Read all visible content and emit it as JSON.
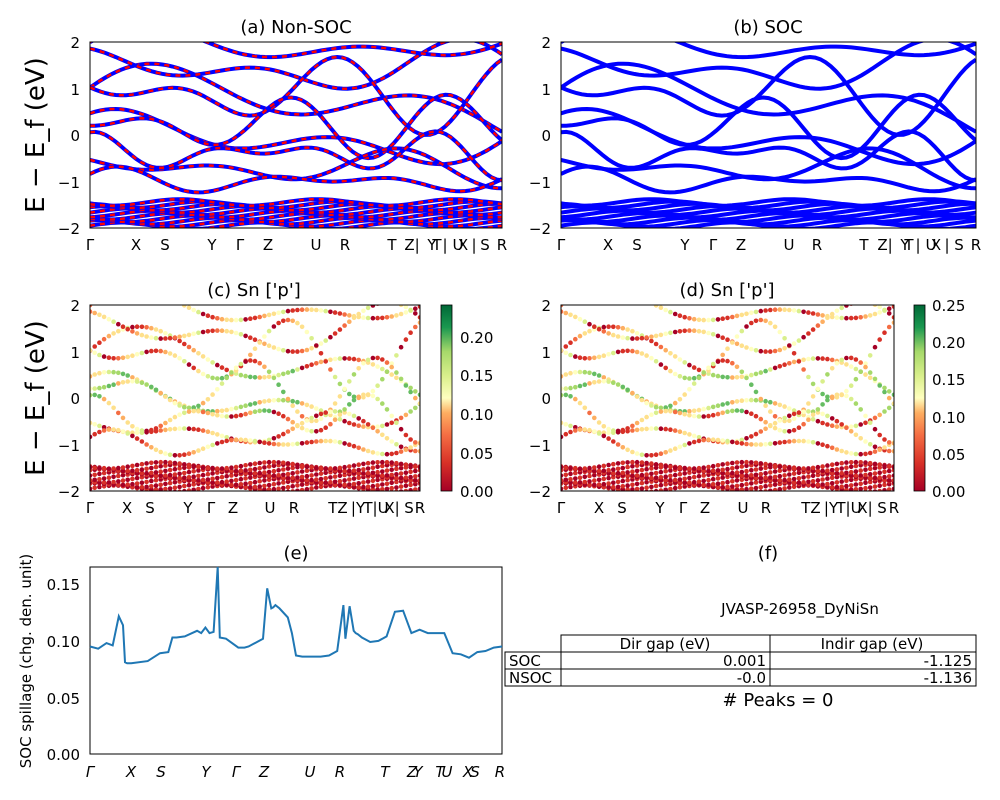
{
  "kpath_labels": [
    "Γ",
    "X",
    "S",
    "Y",
    "Γ",
    "Z",
    "U",
    "R",
    "T",
    "Z|Y",
    "T|U",
    "X|S",
    "R"
  ],
  "kpath_labels_ab": [
    "Γ",
    "X",
    "S",
    "Y",
    "Γ",
    "Z",
    "U",
    "R",
    "T",
    "Z|",
    "Y",
    "T",
    "|",
    "U",
    "X",
    "|",
    "S",
    "R"
  ],
  "kpath_labels_cd": [
    "Γ",
    "X",
    "S",
    "Y",
    "Γ",
    "Z",
    "U",
    "R",
    "TZ",
    "|Y",
    "T|U",
    "X|",
    "S",
    "R"
  ],
  "kpath_labels_e": [
    "Γ",
    "X",
    "S",
    "Y",
    "Γ",
    "Z",
    "U",
    "R",
    "T",
    "Z",
    "Y",
    "T",
    "U",
    "X",
    "S",
    "R"
  ],
  "energy_ticks": [
    "2",
    "1",
    "0",
    "−1",
    "−2"
  ],
  "colorbar_c_ticks": [
    "0.20",
    "0.15",
    "0.10",
    "0.05",
    "0.00"
  ],
  "colorbar_d_ticks": [
    "0.25",
    "0.20",
    "0.15",
    "0.10",
    "0.05",
    "0.00"
  ],
  "spillage_ticks": [
    "0.15",
    "0.10",
    "0.05",
    "0.00"
  ],
  "colors": {
    "non_soc_red": "#ff0000",
    "non_soc_blue": "#0000ff",
    "soc_blue": "#0000ff",
    "spillage_line": "#1f77b4",
    "colormap": "RdYlGn"
  },
  "panel_a": {
    "title": "(a) Non-SOC",
    "ylabel": "E − E_f (eV)"
  },
  "panel_b": {
    "title": "(b) SOC"
  },
  "panel_c": {
    "title": "(c)  Sn ['p']",
    "ylabel": "E − E_f (eV)"
  },
  "panel_d": {
    "title": "(d) Sn ['p']"
  },
  "panel_e": {
    "title": "(e)",
    "ylabel": "SOC spillage (chg. den. unit)"
  },
  "panel_f": {
    "title": "(f)",
    "material": "JVASP-26958_DyNiSn",
    "col_headers": [
      "Dir gap (eV)",
      "Indir gap (eV)"
    ],
    "rows": [
      {
        "label": "SOC",
        "dir": "0.001",
        "indir": "-1.125"
      },
      {
        "label": "NSOC",
        "dir": "-0.0",
        "indir": "-1.136"
      }
    ],
    "peaks": "# Peaks = 0"
  },
  "chart_data": [
    {
      "type": "line",
      "title": "(a) Non-SOC",
      "ylabel": "E − E_f (eV)",
      "ylim": [
        -2,
        2
      ],
      "series": [
        {
          "name": "",
          "values": []
        }
      ]
    },
    {
      "type": "line",
      "title": "(b) SOC",
      "ylim": [
        -2,
        2
      ],
      "series": [
        {
          "name": "",
          "values": []
        }
      ]
    },
    {
      "type": "scatter",
      "title": "(c)  Sn ['p']",
      "ylabel": "E − E_f (eV)",
      "ylim": [
        -2,
        2
      ],
      "colorbar_range": [
        0,
        0.24
      ]
    },
    {
      "type": "scatter",
      "title": "(d) Sn ['p']",
      "ylim": [
        -2,
        2
      ],
      "colorbar_range": [
        0,
        0.25
      ]
    },
    {
      "type": "line",
      "title": "(e)",
      "ylabel": "SOC spillage (chg. den. unit)",
      "ylim": [
        0,
        0.167
      ],
      "x": [
        0,
        0.02,
        0.04,
        0.055,
        0.07,
        0.08,
        0.085,
        0.09,
        0.1,
        0.14,
        0.17,
        0.19,
        0.2,
        0.21,
        0.23,
        0.26,
        0.27,
        0.28,
        0.29,
        0.3,
        0.31,
        0.315,
        0.33,
        0.36,
        0.375,
        0.385,
        0.42,
        0.43,
        0.44,
        0.445,
        0.45,
        0.46,
        0.48,
        0.49,
        0.5,
        0.515,
        0.54,
        0.56,
        0.58,
        0.6,
        0.615,
        0.62,
        0.63,
        0.64,
        0.645,
        0.65,
        0.66,
        0.68,
        0.7,
        0.72,
        0.74,
        0.76,
        0.78,
        0.8,
        0.82,
        0.84,
        0.86,
        0.88,
        0.9,
        0.92,
        0.94,
        0.96,
        0.98,
        1.0
      ],
      "series": [
        {
          "name": "",
          "values": [
            0.096,
            0.094,
            0.099,
            0.097,
            0.123,
            0.115,
            0.082,
            0.081,
            0.081,
            0.083,
            0.09,
            0.091,
            0.104,
            0.104,
            0.105,
            0.11,
            0.108,
            0.113,
            0.108,
            0.109,
            0.167,
            0.104,
            0.103,
            0.095,
            0.095,
            0.096,
            0.103,
            0.148,
            0.13,
            0.131,
            0.133,
            0.13,
            0.122,
            0.108,
            0.088,
            0.087,
            0.087,
            0.087,
            0.088,
            0.092,
            0.133,
            0.103,
            0.132,
            0.11,
            0.108,
            0.107,
            0.104,
            0.1,
            0.101,
            0.105,
            0.127,
            0.128,
            0.108,
            0.111,
            0.108,
            0.108,
            0.108,
            0.09,
            0.089,
            0.086,
            0.091,
            0.092,
            0.095,
            0.096
          ]
        }
      ]
    }
  ]
}
